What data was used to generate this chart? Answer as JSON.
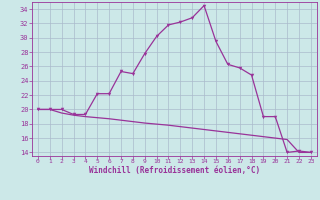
{
  "background_color": "#cce8e8",
  "grid_color": "#aabbcc",
  "line_color": "#993399",
  "xlim": [
    -0.5,
    23.5
  ],
  "ylim": [
    13.5,
    35.0
  ],
  "xticks": [
    0,
    1,
    2,
    3,
    4,
    5,
    6,
    7,
    8,
    9,
    10,
    11,
    12,
    13,
    14,
    15,
    16,
    17,
    18,
    19,
    20,
    21,
    22,
    23
  ],
  "yticks": [
    14,
    16,
    18,
    20,
    22,
    24,
    26,
    28,
    30,
    32,
    34
  ],
  "xlabel": "Windchill (Refroidissement éolien,°C)",
  "curve1_x": [
    0,
    1,
    2,
    3,
    4,
    5,
    6,
    7,
    8,
    9,
    10,
    11,
    12,
    13,
    14,
    15,
    16,
    17,
    18,
    19,
    20,
    21,
    22,
    23
  ],
  "curve1_y": [
    20,
    20,
    20,
    19.3,
    19.3,
    22.2,
    22.2,
    25.3,
    25.0,
    27.8,
    30.2,
    31.8,
    32.2,
    32.8,
    34.5,
    29.5,
    26.3,
    25.8,
    24.8,
    19.0,
    19.0,
    14.0,
    14.2,
    14.0
  ],
  "curve2_x": [
    0,
    1,
    2,
    3,
    4,
    5,
    6,
    7,
    8,
    9,
    10,
    11,
    12,
    13,
    14,
    15,
    16,
    17,
    18,
    19,
    20,
    21,
    22,
    23
  ],
  "curve2_y": [
    20.0,
    20.0,
    19.5,
    19.2,
    19.0,
    18.85,
    18.7,
    18.5,
    18.3,
    18.1,
    17.95,
    17.8,
    17.6,
    17.4,
    17.2,
    17.0,
    16.8,
    16.6,
    16.4,
    16.2,
    16.0,
    15.8,
    14.0,
    14.0
  ]
}
